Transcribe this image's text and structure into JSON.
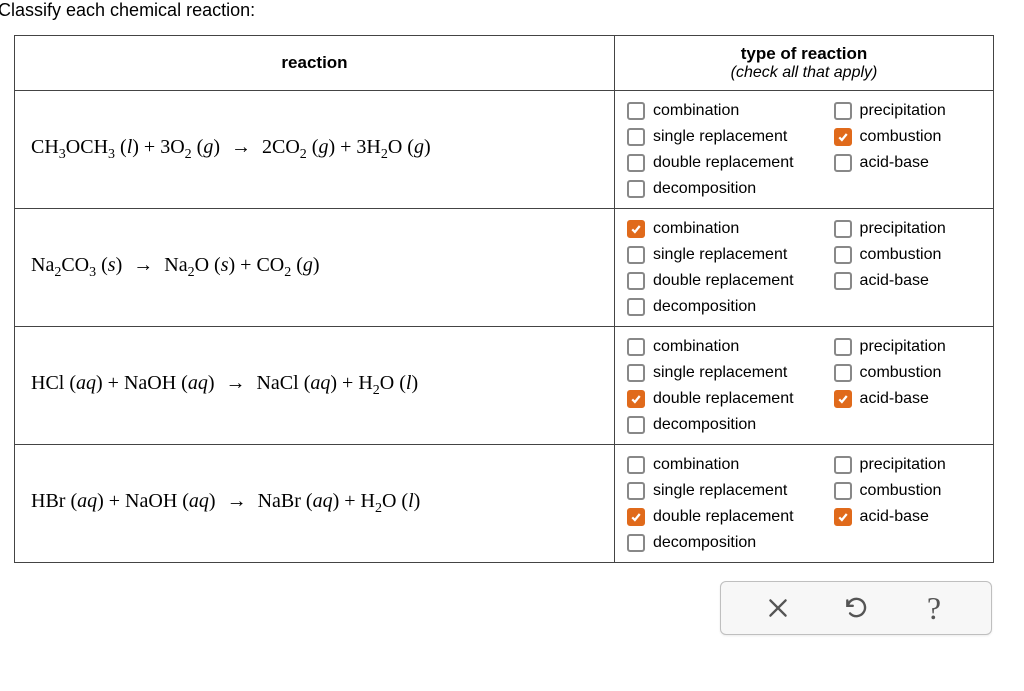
{
  "prompt": "Classify each chemical reaction:",
  "headers": {
    "reaction": "reaction",
    "type_title": "type of reaction",
    "type_sub": "(check all that apply)"
  },
  "option_labels": {
    "combination": "combination",
    "single_replacement": "single replacement",
    "double_replacement": "double replacement",
    "decomposition": "decomposition",
    "precipitation": "precipitation",
    "combustion": "combustion",
    "acid_base": "acid-base"
  },
  "rows": [
    {
      "reaction_html": "CH<span class='sub'>3</span>OCH<span class='sub'>3</span> (<i>l</i>) + 3O<span class='sub'>2</span> (<i>g</i>) <span class='arrow'>→</span> 2CO<span class='sub'>2</span> (<i>g</i>) + 3H<span class='sub'>2</span>O (<i>g</i>)",
      "checked": {
        "combination": false,
        "single_replacement": false,
        "double_replacement": false,
        "decomposition": false,
        "precipitation": false,
        "combustion": true,
        "acid_base": false
      }
    },
    {
      "reaction_html": "Na<span class='sub'>2</span>CO<span class='sub'>3</span> (<i>s</i>) <span class='arrow'>→</span> Na<span class='sub'>2</span>O (<i>s</i>) + CO<span class='sub'>2</span> (<i>g</i>)",
      "checked": {
        "combination": true,
        "single_replacement": false,
        "double_replacement": false,
        "decomposition": false,
        "precipitation": false,
        "combustion": false,
        "acid_base": false
      }
    },
    {
      "reaction_html": "HCl (<i>aq</i>) + NaOH (<i>aq</i>) <span class='arrow'>→</span> NaCl (<i>aq</i>) + H<span class='sub'>2</span>O (<i>l</i>)",
      "checked": {
        "combination": false,
        "single_replacement": false,
        "double_replacement": true,
        "decomposition": false,
        "precipitation": false,
        "combustion": false,
        "acid_base": true
      }
    },
    {
      "reaction_html": "HBr (<i>aq</i>) + NaOH (<i>aq</i>) <span class='arrow'>→</span> NaBr (<i>aq</i>) + H<span class='sub'>2</span>O (<i>l</i>)",
      "checked": {
        "combination": false,
        "single_replacement": false,
        "double_replacement": true,
        "decomposition": false,
        "precipitation": false,
        "combustion": false,
        "acid_base": true
      }
    }
  ],
  "toolbar": {
    "clear": "clear",
    "reset": "reset",
    "help": "?"
  },
  "colors": {
    "checkbox_checked_bg": "#e06a1b",
    "checkbox_border": "#888888",
    "table_border": "#444444",
    "toolbar_bg": "#f7f7f7",
    "toolbar_border": "#bfbfbf"
  }
}
